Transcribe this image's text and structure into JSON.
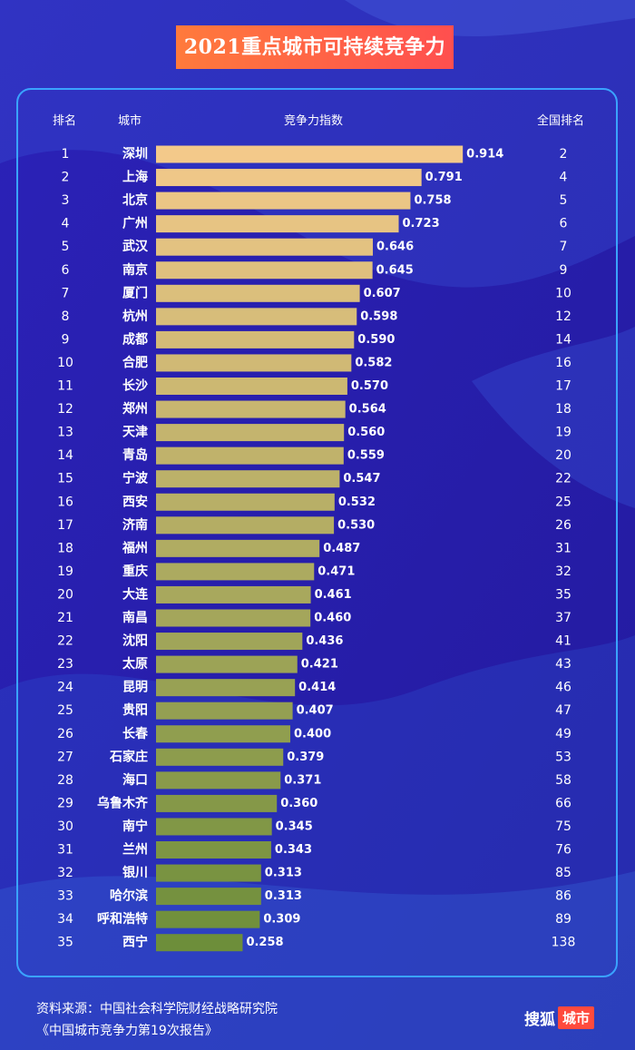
{
  "title": "2021重点城市可持续竞争力",
  "headers": {
    "rank": "排名",
    "city": "城市",
    "index": "竞争力指数",
    "national": "全国排名"
  },
  "colors": {
    "bar_top": "#f3c98a",
    "bar_bottom": "#6d8e3a",
    "accent": "#ff5a3c",
    "panel_border": "#3aa3ff"
  },
  "chart_data": {
    "type": "bar",
    "orientation": "horizontal",
    "categories": [
      "深圳",
      "上海",
      "北京",
      "广州",
      "武汉",
      "南京",
      "厦门",
      "杭州",
      "成都",
      "合肥",
      "长沙",
      "郑州",
      "天津",
      "青岛",
      "宁波",
      "西安",
      "济南",
      "福州",
      "重庆",
      "大连",
      "南昌",
      "沈阳",
      "太原",
      "昆明",
      "贵阳",
      "长春",
      "石家庄",
      "海口",
      "乌鲁木齐",
      "南宁",
      "兰州",
      "银川",
      "哈尔滨",
      "呼和浩特",
      "西宁"
    ],
    "ranks": [
      1,
      2,
      3,
      4,
      5,
      6,
      7,
      8,
      9,
      10,
      11,
      12,
      13,
      14,
      15,
      16,
      17,
      18,
      19,
      20,
      21,
      22,
      23,
      24,
      25,
      26,
      27,
      28,
      29,
      30,
      31,
      32,
      33,
      34,
      35
    ],
    "values": [
      0.914,
      0.791,
      0.758,
      0.723,
      0.646,
      0.645,
      0.607,
      0.598,
      0.59,
      0.582,
      0.57,
      0.564,
      0.56,
      0.559,
      0.547,
      0.532,
      0.53,
      0.487,
      0.471,
      0.461,
      0.46,
      0.436,
      0.421,
      0.414,
      0.407,
      0.4,
      0.379,
      0.371,
      0.36,
      0.345,
      0.343,
      0.313,
      0.313,
      0.309,
      0.258
    ],
    "value_labels": [
      "0.914",
      "0.791",
      "0.758",
      "0.723",
      "0.646",
      "0.645",
      "0.607",
      "0.598",
      "0.590",
      "0.582",
      "0.570",
      "0.564",
      "0.560",
      "0.559",
      "0.547",
      "0.532",
      "0.530",
      "0.487",
      "0.471",
      "0.461",
      "0.460",
      "0.436",
      "0.421",
      "0.414",
      "0.407",
      "0.400",
      "0.379",
      "0.371",
      "0.360",
      "0.345",
      "0.343",
      "0.313",
      "0.313",
      "0.309",
      "0.258"
    ],
    "national_ranks": [
      2,
      4,
      5,
      6,
      7,
      9,
      10,
      12,
      14,
      16,
      17,
      18,
      19,
      20,
      22,
      25,
      26,
      31,
      32,
      35,
      37,
      41,
      43,
      46,
      47,
      49,
      53,
      58,
      66,
      75,
      76,
      85,
      86,
      89,
      138
    ]
  },
  "source": {
    "line1": "资料来源：中国社会科学院财经战略研究院",
    "line2": "《中国城市竞争力第19次报告》"
  },
  "brand": {
    "name": "搜狐",
    "tag": "城市"
  }
}
